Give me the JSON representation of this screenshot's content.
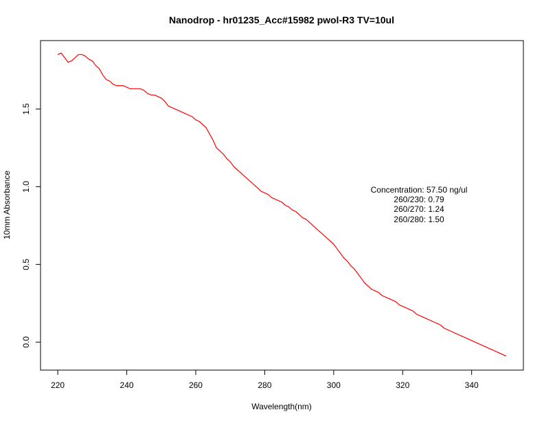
{
  "chart_data": {
    "type": "line",
    "title": "Nanodrop - hr01235_Acc#15982 pwol-R3 TV=10ul",
    "xlabel": "Wavelength(nm)",
    "ylabel": "10mm Absorbance",
    "xlim": [
      215,
      355
    ],
    "ylim": [
      -0.18,
      1.94
    ],
    "xticks": [
      220,
      240,
      260,
      280,
      300,
      320,
      340
    ],
    "yticks": [
      0.0,
      0.5,
      1.0,
      1.5
    ],
    "ytick_labels": [
      "0.0",
      "0.5",
      "1.0",
      "1.5"
    ],
    "grid": false,
    "legend": "none",
    "series": [
      {
        "color": "#ff0000",
        "x": [
          220,
          221,
          222,
          223,
          224,
          225,
          226,
          227,
          228,
          229,
          230,
          231,
          232,
          233,
          234,
          235,
          236,
          237,
          238,
          239,
          240,
          241,
          242,
          243,
          244,
          245,
          246,
          247,
          248,
          249,
          250,
          251,
          252,
          253,
          254,
          255,
          256,
          257,
          258,
          259,
          260,
          261,
          262,
          263,
          264,
          265,
          266,
          267,
          268,
          269,
          270,
          271,
          272,
          273,
          274,
          275,
          276,
          277,
          278,
          279,
          280,
          281,
          282,
          283,
          284,
          285,
          286,
          287,
          288,
          289,
          290,
          291,
          292,
          293,
          294,
          295,
          296,
          297,
          298,
          299,
          300,
          301,
          302,
          303,
          304,
          305,
          306,
          307,
          308,
          309,
          310,
          311,
          312,
          313,
          314,
          315,
          316,
          317,
          318,
          319,
          320,
          321,
          322,
          323,
          324,
          325,
          326,
          327,
          328,
          329,
          330,
          331,
          332,
          333,
          334,
          335,
          336,
          337,
          338,
          339,
          340,
          341,
          342,
          343,
          344,
          345,
          346,
          347,
          348,
          349,
          350
        ],
        "y": [
          1.85,
          1.86,
          1.83,
          1.8,
          1.81,
          1.83,
          1.85,
          1.85,
          1.84,
          1.82,
          1.81,
          1.78,
          1.76,
          1.72,
          1.69,
          1.68,
          1.66,
          1.65,
          1.65,
          1.65,
          1.64,
          1.63,
          1.63,
          1.63,
          1.63,
          1.62,
          1.6,
          1.59,
          1.59,
          1.58,
          1.57,
          1.55,
          1.52,
          1.51,
          1.5,
          1.49,
          1.48,
          1.47,
          1.46,
          1.45,
          1.43,
          1.42,
          1.4,
          1.38,
          1.34,
          1.3,
          1.25,
          1.23,
          1.21,
          1.18,
          1.16,
          1.13,
          1.11,
          1.09,
          1.07,
          1.05,
          1.03,
          1.01,
          0.99,
          0.97,
          0.96,
          0.95,
          0.93,
          0.92,
          0.91,
          0.9,
          0.88,
          0.87,
          0.85,
          0.84,
          0.82,
          0.8,
          0.79,
          0.77,
          0.75,
          0.73,
          0.71,
          0.69,
          0.67,
          0.65,
          0.63,
          0.6,
          0.57,
          0.54,
          0.52,
          0.49,
          0.47,
          0.44,
          0.41,
          0.38,
          0.36,
          0.34,
          0.33,
          0.32,
          0.3,
          0.29,
          0.28,
          0.27,
          0.26,
          0.24,
          0.23,
          0.22,
          0.21,
          0.2,
          0.18,
          0.17,
          0.16,
          0.15,
          0.14,
          0.13,
          0.12,
          0.11,
          0.09,
          0.08,
          0.07,
          0.06,
          0.05,
          0.04,
          0.03,
          0.02,
          0.01,
          0.0,
          -0.01,
          -0.02,
          -0.03,
          -0.04,
          -0.05,
          -0.06,
          -0.07,
          -0.08,
          -0.09
        ]
      }
    ],
    "annotations": [
      "Concentration: 57.50 ng/ul",
      "260/230: 0.79",
      "260/270: 1.24",
      "260/280: 1.50"
    ]
  }
}
